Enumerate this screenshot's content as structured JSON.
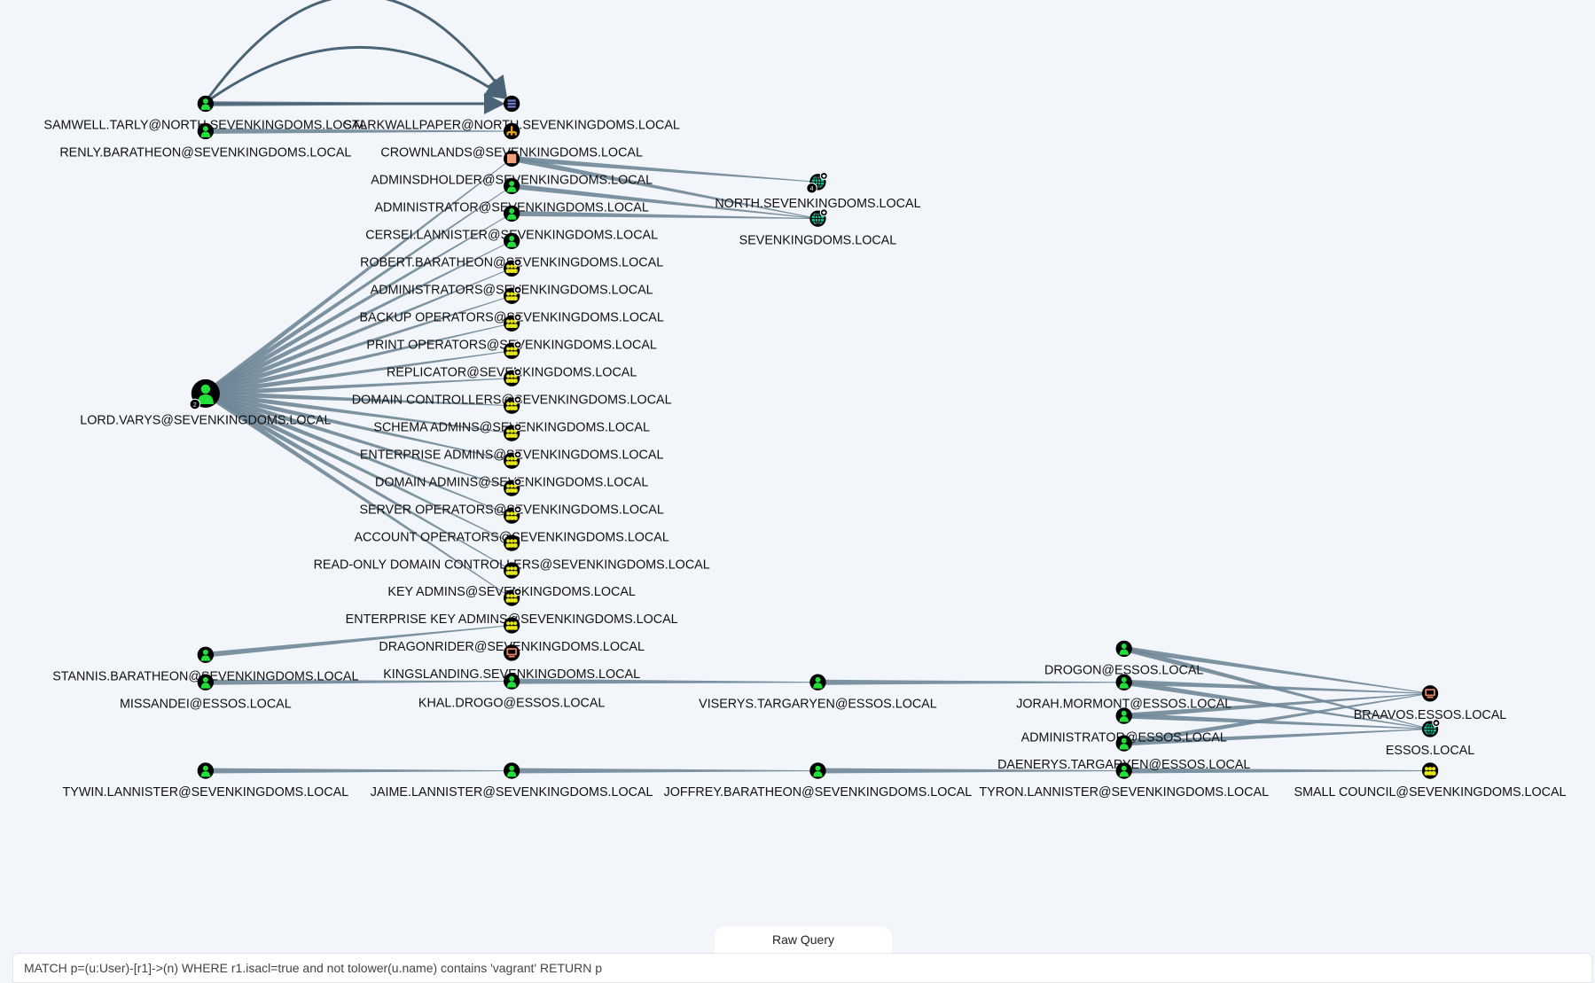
{
  "colors": {
    "edge": "#4a6475",
    "edge_light": "#6f8797",
    "user": "#22e03a",
    "group": "#e6e619",
    "domain": "#17c49a",
    "computer": "#e8866a",
    "container": "#f0a07c",
    "ou": "#e8a020",
    "gpo": "#6e7fd0"
  },
  "nodes": [
    {
      "id": "samwell",
      "label": "SAMWELL.TARLY@NORTH.SEVENKINGDOMS.LOCAL",
      "type": "user"
    },
    {
      "id": "renly",
      "label": "RENLY.BARATHEON@SEVENKINGDOMS.LOCAL",
      "type": "user"
    },
    {
      "id": "varys",
      "label": "LORD.VARYS@SEVENKINGDOMS.LOCAL",
      "type": "user",
      "badge": "2"
    },
    {
      "id": "stannis",
      "label": "STANNIS.BARATHEON@SEVENKINGDOMS.LOCAL",
      "type": "user"
    },
    {
      "id": "missandei",
      "label": "MISSANDEI@ESSOS.LOCAL",
      "type": "user"
    },
    {
      "id": "tywin",
      "label": "TYWIN.LANNISTER@SEVENKINGDOMS.LOCAL",
      "type": "user"
    },
    {
      "id": "starkwallpaper",
      "label": "STARKWALLPAPER@NORTH.SEVENKINGDOMS.LOCAL",
      "type": "gpo"
    },
    {
      "id": "crownlands",
      "label": "CROWNLANDS@SEVENKINGDOMS.LOCAL",
      "type": "ou"
    },
    {
      "id": "adminsdholder",
      "label": "ADMINSDHOLDER@SEVENKINGDOMS.LOCAL",
      "type": "container"
    },
    {
      "id": "administrator",
      "label": "ADMINISTRATOR@SEVENKINGDOMS.LOCAL",
      "type": "user"
    },
    {
      "id": "cersei",
      "label": "CERSEI.LANNISTER@SEVENKINGDOMS.LOCAL",
      "type": "user"
    },
    {
      "id": "robert",
      "label": "ROBERT.BARATHEON@SEVENKINGDOMS.LOCAL",
      "type": "user"
    },
    {
      "id": "administrators",
      "label": "ADMINISTRATORS@SEVENKINGDOMS.LOCAL",
      "type": "group",
      "highvalue": true
    },
    {
      "id": "backupops",
      "label": "BACKUP OPERATORS@SEVENKINGDOMS.LOCAL",
      "type": "group",
      "highvalue": true
    },
    {
      "id": "printops",
      "label": "PRINT OPERATORS@SEVENKINGDOMS.LOCAL",
      "type": "group",
      "highvalue": true
    },
    {
      "id": "replicator",
      "label": "REPLICATOR@SEVENKINGDOMS.LOCAL",
      "type": "group",
      "highvalue": true
    },
    {
      "id": "dcs",
      "label": "DOMAIN CONTROLLERS@SEVENKINGDOMS.LOCAL",
      "type": "group",
      "highvalue": true
    },
    {
      "id": "schema",
      "label": "SCHEMA ADMINS@SEVENKINGDOMS.LOCAL",
      "type": "group",
      "highvalue": true
    },
    {
      "id": "ea",
      "label": "ENTERPRISE ADMINS@SEVENKINGDOMS.LOCAL",
      "type": "group",
      "highvalue": true
    },
    {
      "id": "da",
      "label": "DOMAIN ADMINS@SEVENKINGDOMS.LOCAL",
      "type": "group",
      "highvalue": true
    },
    {
      "id": "serverops",
      "label": "SERVER OPERATORS@SEVENKINGDOMS.LOCAL",
      "type": "group",
      "highvalue": true
    },
    {
      "id": "accountops",
      "label": "ACCOUNT OPERATORS@SEVENKINGDOMS.LOCAL",
      "type": "group",
      "highvalue": true
    },
    {
      "id": "rodc",
      "label": "READ-ONLY DOMAIN CONTROLLERS@SEVENKINGDOMS.LOCAL",
      "type": "group"
    },
    {
      "id": "keyadmins",
      "label": "KEY ADMINS@SEVENKINGDOMS.LOCAL",
      "type": "group"
    },
    {
      "id": "eka",
      "label": "ENTERPRISE KEY ADMINS@SEVENKINGDOMS.LOCAL",
      "type": "group",
      "highvalue": true
    },
    {
      "id": "dragonrider",
      "label": "DRAGONRIDER@SEVENKINGDOMS.LOCAL",
      "type": "group"
    },
    {
      "id": "kingslanding",
      "label": "KINGSLANDING.SEVENKINGDOMS.LOCAL",
      "type": "computer"
    },
    {
      "id": "khaldrogo",
      "label": "KHAL.DROGO@ESSOS.LOCAL",
      "type": "user"
    },
    {
      "id": "jaime",
      "label": "JAIME.LANNISTER@SEVENKINGDOMS.LOCAL",
      "type": "user"
    },
    {
      "id": "north",
      "label": "NORTH.SEVENKINGDOMS.LOCAL",
      "type": "domain",
      "highvalue": true,
      "badge": "4"
    },
    {
      "id": "sevenkingdoms",
      "label": "SEVENKINGDOMS.LOCAL",
      "type": "domain",
      "highvalue": true
    },
    {
      "id": "viserys",
      "label": "VISERYS.TARGARYEN@ESSOS.LOCAL",
      "type": "user"
    },
    {
      "id": "joffrey",
      "label": "JOFFREY.BARATHEON@SEVENKINGDOMS.LOCAL",
      "type": "user"
    },
    {
      "id": "drogon",
      "label": "DROGON@ESSOS.LOCAL",
      "type": "user"
    },
    {
      "id": "jorah",
      "label": "JORAH.MORMONT@ESSOS.LOCAL",
      "type": "user"
    },
    {
      "id": "adminessos",
      "label": "ADMINISTRATOR@ESSOS.LOCAL",
      "type": "user"
    },
    {
      "id": "daenerys",
      "label": "DAENERYS.TARGARYEN@ESSOS.LOCAL",
      "type": "user"
    },
    {
      "id": "tyron",
      "label": "TYRON.LANNISTER@SEVENKINGDOMS.LOCAL",
      "type": "user"
    },
    {
      "id": "braavos",
      "label": "BRAAVOS.ESSOS.LOCAL",
      "type": "computer"
    },
    {
      "id": "essos",
      "label": "ESSOS.LOCAL",
      "type": "domain",
      "highvalue": true
    },
    {
      "id": "smallcouncil",
      "label": "SMALL COUNCIL@SEVENKINGDOMS.LOCAL",
      "type": "group"
    }
  ],
  "edges": [
    [
      "samwell",
      "starkwallpaper"
    ],
    [
      "renly",
      "crownlands"
    ],
    [
      "varys",
      "adminsdholder"
    ],
    [
      "varys",
      "administrator"
    ],
    [
      "varys",
      "cersei"
    ],
    [
      "varys",
      "robert"
    ],
    [
      "varys",
      "administrators"
    ],
    [
      "varys",
      "backupops"
    ],
    [
      "varys",
      "printops"
    ],
    [
      "varys",
      "replicator"
    ],
    [
      "varys",
      "dcs"
    ],
    [
      "varys",
      "schema"
    ],
    [
      "varys",
      "ea"
    ],
    [
      "varys",
      "da"
    ],
    [
      "varys",
      "serverops"
    ],
    [
      "varys",
      "accountops"
    ],
    [
      "varys",
      "rodc"
    ],
    [
      "varys",
      "keyadmins"
    ],
    [
      "varys",
      "eka"
    ],
    [
      "adminsdholder",
      "north"
    ],
    [
      "adminsdholder",
      "sevenkingdoms"
    ],
    [
      "administrator",
      "sevenkingdoms"
    ],
    [
      "cersei",
      "sevenkingdoms"
    ],
    [
      "stannis",
      "dragonrider"
    ],
    [
      "missandei",
      "khaldrogo"
    ],
    [
      "khaldrogo",
      "viserys"
    ],
    [
      "viserys",
      "jorah"
    ],
    [
      "tywin",
      "jaime"
    ],
    [
      "jaime",
      "joffrey"
    ],
    [
      "joffrey",
      "tyron"
    ],
    [
      "tyron",
      "smallcouncil"
    ],
    [
      "drogon",
      "braavos"
    ],
    [
      "drogon",
      "essos"
    ],
    [
      "jorah",
      "braavos"
    ],
    [
      "jorah",
      "essos"
    ],
    [
      "adminessos",
      "braavos"
    ],
    [
      "adminessos",
      "essos"
    ],
    [
      "daenerys",
      "braavos"
    ],
    [
      "daenerys",
      "essos"
    ]
  ],
  "curved_edges": [
    [
      "samwell",
      "starkwallpaper"
    ],
    [
      "samwell",
      "starkwallpaper"
    ]
  ],
  "query": {
    "tab_label": "Raw Query",
    "value": "MATCH p=(u:User)-[r1]->(n) WHERE r1.isacl=true and not tolower(u.name) contains 'vagrant' RETURN p"
  }
}
